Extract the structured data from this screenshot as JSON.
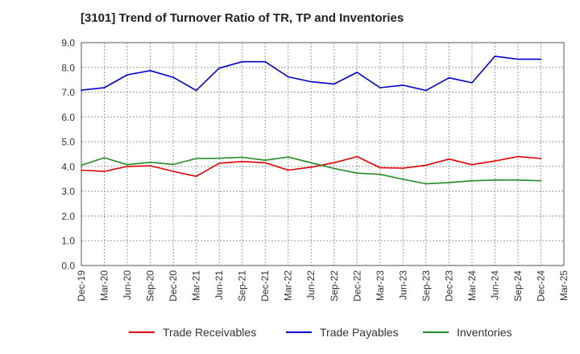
{
  "chart_data": {
    "type": "line",
    "title": "[3101]  Trend of Turnover Ratio of TR, TP and Inventories",
    "xlabel": "",
    "ylabel": "",
    "ylim": [
      0,
      9
    ],
    "yticks": [
      "0.0",
      "1.0",
      "2.0",
      "3.0",
      "4.0",
      "5.0",
      "6.0",
      "7.0",
      "8.0",
      "9.0"
    ],
    "x": [
      "Dec-19",
      "Mar-20",
      "Jun-20",
      "Sep-20",
      "Dec-20",
      "Mar-21",
      "Jun-21",
      "Sep-21",
      "Dec-21",
      "Mar-22",
      "Jun-22",
      "Sep-22",
      "Dec-22",
      "Mar-23",
      "Jun-23",
      "Sep-23",
      "Dec-23",
      "Mar-24",
      "Jun-24",
      "Sep-24",
      "Dec-24",
      "Mar-25"
    ],
    "grid": true,
    "legend_position": "bottom",
    "series": [
      {
        "name": "Trade Receivables",
        "color": "#e00000",
        "values": [
          3.85,
          3.8,
          4.0,
          4.03,
          3.8,
          3.6,
          4.13,
          4.2,
          4.15,
          3.85,
          3.97,
          4.15,
          4.4,
          3.95,
          3.93,
          4.05,
          4.3,
          4.07,
          4.22,
          4.4,
          4.32,
          null
        ]
      },
      {
        "name": "Trade Payables",
        "color": "#0000cc",
        "values": [
          7.08,
          7.18,
          7.7,
          7.87,
          7.6,
          7.07,
          7.97,
          8.23,
          8.23,
          7.62,
          7.42,
          7.33,
          7.8,
          7.18,
          7.28,
          7.07,
          7.58,
          7.38,
          8.45,
          8.33,
          8.33,
          null
        ]
      },
      {
        "name": "Inventories",
        "color": "#228b22",
        "values": [
          4.05,
          4.35,
          4.07,
          4.17,
          4.08,
          4.32,
          4.33,
          4.37,
          4.25,
          4.38,
          4.15,
          3.92,
          3.73,
          3.68,
          3.48,
          3.3,
          3.35,
          3.42,
          3.45,
          3.45,
          3.42,
          null
        ]
      }
    ]
  }
}
